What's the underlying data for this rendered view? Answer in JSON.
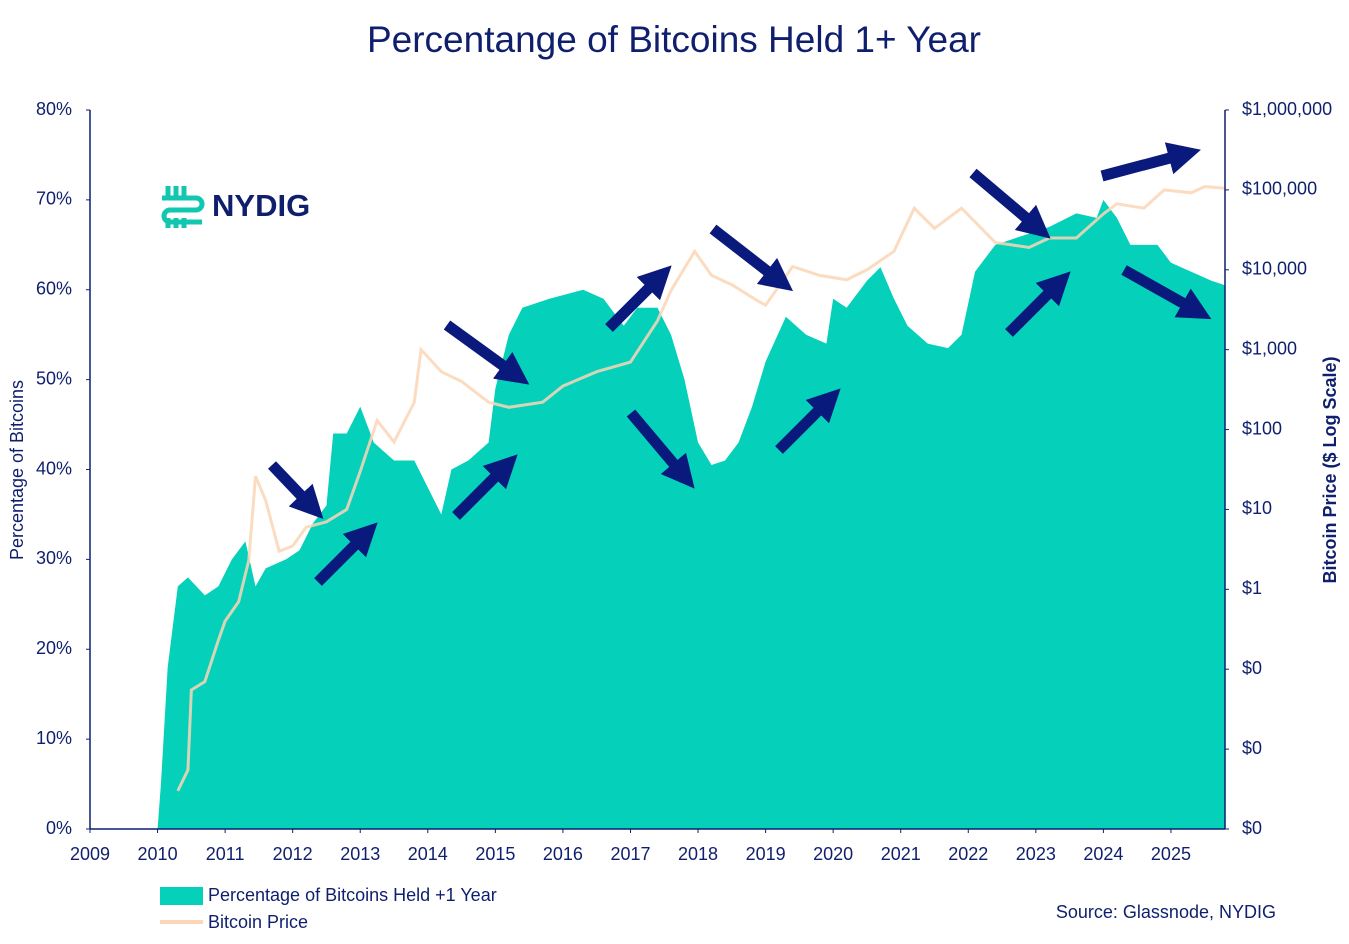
{
  "chart_data": {
    "type": "area",
    "title": "Percentange of Bitcoins Held 1+ Year",
    "logo_text": "NYDIG",
    "source": "Source: Glassnode, NYDIG",
    "ylabel": "Percentage of Bitcoins",
    "y2label": "Bitcoin Price ($ Log Scale)",
    "xlim": [
      2009,
      2025.8
    ],
    "xticks": [
      2009,
      2010,
      2011,
      2012,
      2013,
      2014,
      2015,
      2016,
      2017,
      2018,
      2019,
      2020,
      2021,
      2022,
      2023,
      2024,
      2025
    ],
    "ylim": [
      0,
      80
    ],
    "yticks": [
      {
        "value": 0,
        "label": "0%"
      },
      {
        "value": 10,
        "label": "10%"
      },
      {
        "value": 20,
        "label": "20%"
      },
      {
        "value": 30,
        "label": "30%"
      },
      {
        "value": 40,
        "label": "40%"
      },
      {
        "value": 50,
        "label": "50%"
      },
      {
        "value": 60,
        "label": "60%"
      },
      {
        "value": 70,
        "label": "70%"
      },
      {
        "value": 80,
        "label": "80%"
      }
    ],
    "y2lim": [
      0.001,
      1000000
    ],
    "y2log": true,
    "y2ticks": [
      {
        "value": 0.001,
        "label": "$0"
      },
      {
        "value": 0.01,
        "label": "$0"
      },
      {
        "value": 0.1,
        "label": "$0"
      },
      {
        "value": 1,
        "label": "$1"
      },
      {
        "value": 10,
        "label": "$10"
      },
      {
        "value": 100,
        "label": "$100"
      },
      {
        "value": 1000,
        "label": "$1,000"
      },
      {
        "value": 10000,
        "label": "$10,000"
      },
      {
        "value": 100000,
        "label": "$100,000"
      },
      {
        "value": 1000000,
        "label": "$1,000,000"
      }
    ],
    "series": [
      {
        "name": "Percentage of Bitcoins Held +1 Year",
        "color": "#05d0b9",
        "type": "area",
        "x": [
          2010.0,
          2010.05,
          2010.15,
          2010.3,
          2010.45,
          2010.7,
          2010.9,
          2011.1,
          2011.3,
          2011.45,
          2011.6,
          2011.9,
          2012.1,
          2012.3,
          2012.5,
          2012.6,
          2012.8,
          2013.0,
          2013.2,
          2013.5,
          2013.8,
          2014.0,
          2014.2,
          2014.35,
          2014.6,
          2014.9,
          2015.0,
          2015.2,
          2015.4,
          2015.8,
          2016.3,
          2016.6,
          2016.9,
          2017.1,
          2017.4,
          2017.6,
          2017.8,
          2018.0,
          2018.2,
          2018.4,
          2018.6,
          2018.8,
          2019.0,
          2019.3,
          2019.6,
          2019.9,
          2020.0,
          2020.2,
          2020.5,
          2020.7,
          2020.9,
          2021.1,
          2021.4,
          2021.7,
          2021.9,
          2022.1,
          2022.4,
          2022.8,
          2023.2,
          2023.6,
          2023.9,
          2024.0,
          2024.2,
          2024.4,
          2024.8,
          2025.0,
          2025.3,
          2025.6,
          2025.8
        ],
        "values": [
          0,
          5,
          18,
          27,
          28,
          26,
          27,
          30,
          32,
          27,
          29,
          30,
          31,
          34,
          36,
          44,
          44,
          47,
          43,
          41,
          41,
          38,
          35,
          40,
          41,
          43,
          49,
          55,
          58,
          59,
          60,
          59,
          56,
          58,
          58,
          55,
          50,
          43,
          40.5,
          41,
          43,
          47,
          52,
          57,
          55,
          54,
          59,
          58,
          61,
          62.5,
          59,
          56,
          54,
          53.5,
          55,
          62,
          65,
          66,
          67,
          68.5,
          68,
          70,
          68,
          65,
          65,
          63,
          62,
          61,
          60.5
        ]
      },
      {
        "name": "Bitcoin Price",
        "color": "#fcd6b6",
        "type": "line",
        "axis": "y2",
        "x": [
          2010.3,
          2010.45,
          2010.5,
          2010.7,
          2010.9,
          2011.0,
          2011.2,
          2011.35,
          2011.45,
          2011.6,
          2011.8,
          2012.0,
          2012.2,
          2012.5,
          2012.8,
          2013.0,
          2013.25,
          2013.5,
          2013.8,
          2013.9,
          2014.2,
          2014.5,
          2014.9,
          2015.2,
          2015.7,
          2016.0,
          2016.5,
          2017.0,
          2017.4,
          2017.6,
          2017.95,
          2018.2,
          2018.5,
          2018.9,
          2019.0,
          2019.4,
          2019.8,
          2020.2,
          2020.5,
          2020.9,
          2021.2,
          2021.5,
          2021.9,
          2022.4,
          2022.9,
          2023.2,
          2023.6,
          2024.0,
          2024.2,
          2024.6,
          2024.9,
          2025.3,
          2025.5,
          2025.8
        ],
        "values": [
          0.003,
          0.0055,
          0.055,
          0.07,
          0.23,
          0.4,
          0.7,
          2.3,
          26,
          13,
          3,
          3.5,
          6,
          7,
          10,
          30,
          130,
          70,
          220,
          1000,
          530,
          400,
          220,
          190,
          220,
          350,
          530,
          700,
          2300,
          5500,
          17000,
          8500,
          6500,
          4000,
          3600,
          11000,
          8500,
          7500,
          10000,
          17000,
          59000,
          33000,
          59000,
          22000,
          19000,
          25000,
          25000,
          50000,
          67000,
          59000,
          100000,
          92000,
          110000,
          105000
        ]
      }
    ]
  }
}
